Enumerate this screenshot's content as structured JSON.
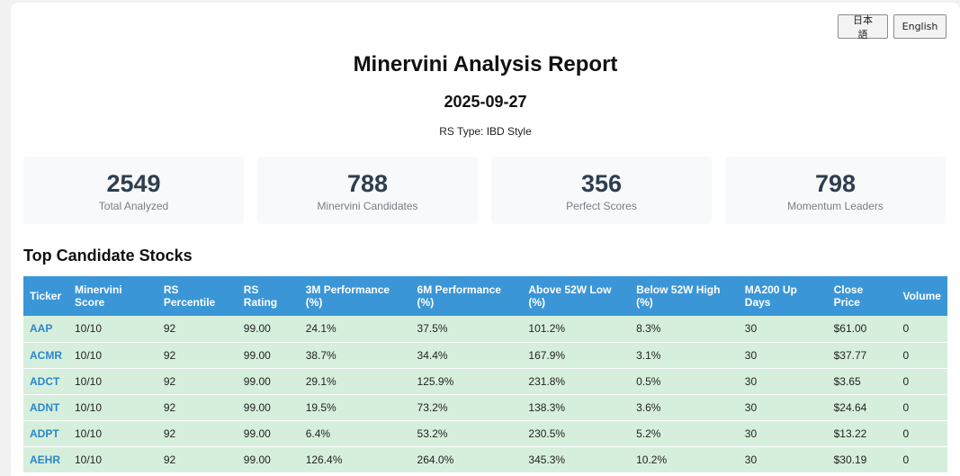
{
  "language_buttons": {
    "japanese": "日本語",
    "english": "English"
  },
  "report": {
    "title": "Minervini Analysis Report",
    "date": "2025-09-27",
    "rs_type": "RS Type: IBD Style"
  },
  "stats": [
    {
      "value": "2549",
      "label": "Total Analyzed"
    },
    {
      "value": "788",
      "label": "Minervini Candidates"
    },
    {
      "value": "356",
      "label": "Perfect Scores"
    },
    {
      "value": "798",
      "label": "Momentum Leaders"
    }
  ],
  "table": {
    "title": "Top Candidate Stocks",
    "headers": [
      [
        "Ticker"
      ],
      [
        "Minervini",
        "Score"
      ],
      [
        "RS",
        "Percentile"
      ],
      [
        "RS",
        "Rating"
      ],
      [
        "3M Performance",
        "(%)"
      ],
      [
        "6M Performance",
        "(%)"
      ],
      [
        "Above 52W Low",
        "(%)"
      ],
      [
        "Below 52W High",
        "(%)"
      ],
      [
        "MA200 Up",
        "Days"
      ],
      [
        "Close",
        "Price"
      ],
      [
        "Volume"
      ]
    ],
    "rows": [
      [
        "AAP",
        "10/10",
        "92",
        "99.00",
        "24.1%",
        "37.5%",
        "101.2%",
        "8.3%",
        "30",
        "$61.00",
        "0"
      ],
      [
        "ACMR",
        "10/10",
        "92",
        "99.00",
        "38.7%",
        "34.4%",
        "167.9%",
        "3.1%",
        "30",
        "$37.77",
        "0"
      ],
      [
        "ADCT",
        "10/10",
        "92",
        "99.00",
        "29.1%",
        "125.9%",
        "231.8%",
        "0.5%",
        "30",
        "$3.65",
        "0"
      ],
      [
        "ADNT",
        "10/10",
        "92",
        "99.00",
        "19.5%",
        "73.2%",
        "138.3%",
        "3.6%",
        "30",
        "$24.64",
        "0"
      ],
      [
        "ADPT",
        "10/10",
        "92",
        "99.00",
        "6.4%",
        "53.2%",
        "230.5%",
        "5.2%",
        "30",
        "$13.22",
        "0"
      ],
      [
        "AEHR",
        "10/10",
        "92",
        "99.00",
        "126.4%",
        "264.0%",
        "345.3%",
        "10.2%",
        "30",
        "$30.19",
        "0"
      ]
    ]
  }
}
